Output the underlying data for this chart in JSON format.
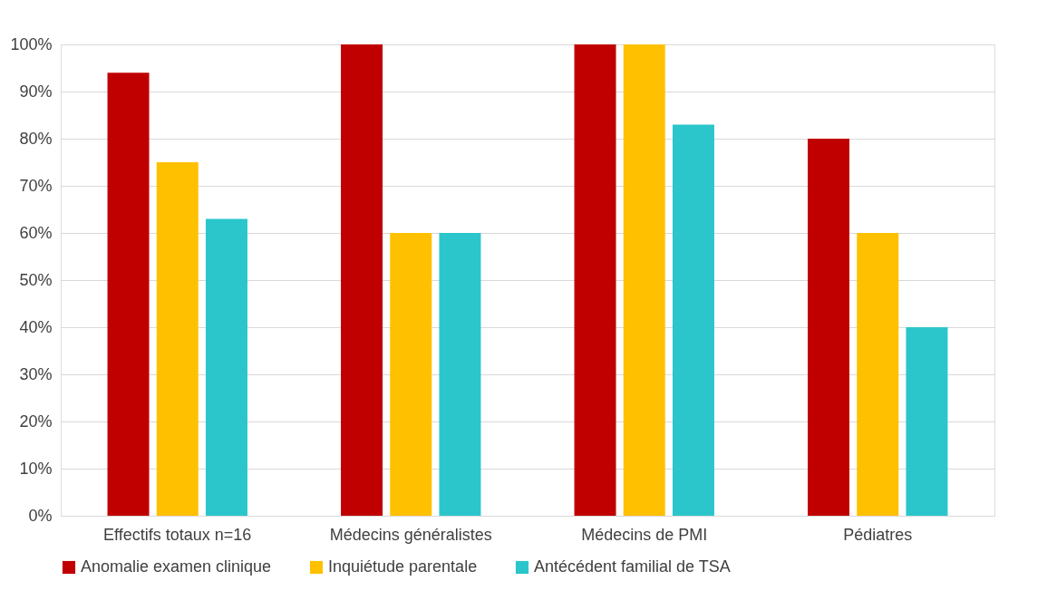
{
  "chart_data": {
    "type": "bar",
    "categories": [
      "Effectifs totaux n=16",
      "Médecins généralistes",
      "Médecins de PMI",
      "Pédiatres"
    ],
    "series": [
      {
        "name": "Anomalie examen clinique",
        "color": "#c00000",
        "values": [
          94,
          100,
          100,
          80
        ]
      },
      {
        "name": "Inquiétude parentale",
        "color": "#ffc000",
        "values": [
          75,
          60,
          100,
          60
        ]
      },
      {
        "name": "Antécédent familial de TSA",
        "color": "#2ac6cc",
        "values": [
          63,
          60,
          83,
          40
        ]
      }
    ],
    "ylim": [
      0,
      100
    ],
    "yticks": [
      {
        "value": 0,
        "label": "0%"
      },
      {
        "value": 10,
        "label": "10%"
      },
      {
        "value": 20,
        "label": "20%"
      },
      {
        "value": 30,
        "label": "30%"
      },
      {
        "value": 40,
        "label": "40%"
      },
      {
        "value": 50,
        "label": "50%"
      },
      {
        "value": 60,
        "label": "60%"
      },
      {
        "value": 70,
        "label": "70%"
      },
      {
        "value": 80,
        "label": "80%"
      },
      {
        "value": 90,
        "label": "90%"
      },
      {
        "value": 100,
        "label": "100%"
      }
    ],
    "grid": "y",
    "legend": "bottom"
  }
}
